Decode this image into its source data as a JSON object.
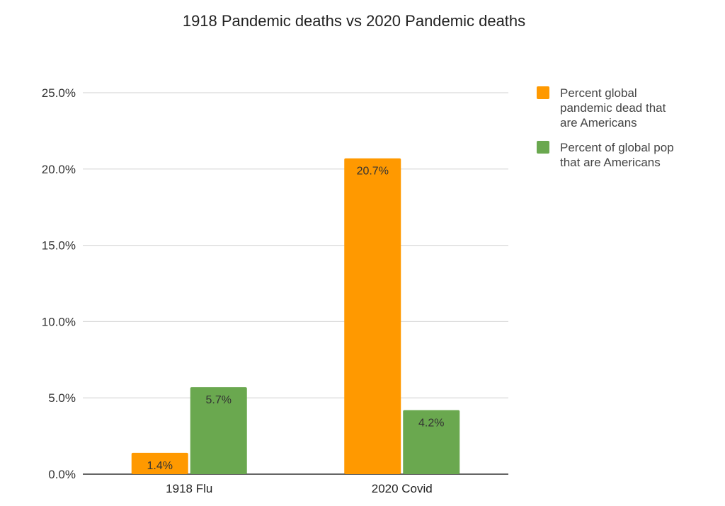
{
  "chart_data": {
    "type": "bar",
    "title": "1918 Pandemic deaths vs 2020 Pandemic deaths",
    "xlabel": "",
    "ylabel": "",
    "categories": [
      "1918 Flu",
      "2020 Covid"
    ],
    "series": [
      {
        "name": "Percent global pandemic dead that are Americans",
        "legend_lines": [
          "Percent global",
          "pandemic dead that",
          "are Americans"
        ],
        "color": "#ff9900",
        "values": [
          1.4,
          20.7
        ],
        "data_labels": [
          "1.4%",
          "20.7%"
        ]
      },
      {
        "name": "Percent of global pop that are Americans",
        "legend_lines": [
          "Percent of global pop",
          "that are Americans"
        ],
        "color": "#6aa84f",
        "values": [
          5.7,
          4.2
        ],
        "data_labels": [
          "5.7%",
          "4.2%"
        ]
      }
    ],
    "ylim": [
      0,
      25
    ],
    "yticks": [
      0,
      5,
      10,
      15,
      20,
      25
    ],
    "ytick_labels": [
      "0.0%",
      "5.0%",
      "10.0%",
      "15.0%",
      "20.0%",
      "25.0%"
    ],
    "grid": true,
    "legend": "right",
    "colors": {
      "grid": "#d9d9d9",
      "axis": "#333333"
    }
  }
}
